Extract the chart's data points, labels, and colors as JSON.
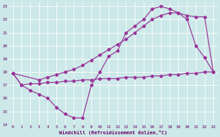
{
  "xlabel": "Windchill (Refroidissement éolien,°C)",
  "background_color": "#cce8e8",
  "line_color": "#993399",
  "xlim": [
    -0.5,
    23.5
  ],
  "ylim": [
    14,
    23.3
  ],
  "yticks": [
    14,
    15,
    16,
    17,
    18,
    19,
    20,
    21,
    22,
    23
  ],
  "xticks": [
    0,
    1,
    2,
    3,
    4,
    5,
    6,
    7,
    8,
    9,
    10,
    11,
    12,
    13,
    14,
    15,
    16,
    17,
    18,
    19,
    20,
    21,
    22,
    23
  ],
  "line1_x": [
    0,
    1,
    2,
    3,
    4,
    5,
    6,
    7,
    8,
    9,
    10,
    11,
    12,
    13,
    14,
    15,
    16,
    17,
    18,
    19,
    20,
    21,
    22,
    23
  ],
  "line1_y": [
    17.9,
    17.0,
    16.6,
    16.3,
    16.0,
    15.3,
    14.8,
    14.5,
    14.5,
    17.0,
    18.0,
    19.2,
    19.6,
    21.0,
    21.5,
    22.0,
    22.8,
    23.0,
    22.8,
    22.5,
    22.0,
    20.0,
    19.1,
    18.0
  ],
  "line2_x": [
    0,
    3,
    4,
    5,
    6,
    7,
    8,
    9,
    10,
    11,
    12,
    13,
    14,
    15,
    16,
    17,
    18,
    19,
    20,
    21,
    22,
    23
  ],
  "line2_y": [
    17.9,
    17.4,
    17.6,
    17.8,
    18.0,
    18.2,
    18.5,
    18.9,
    19.3,
    19.7,
    20.1,
    20.5,
    21.0,
    21.5,
    22.0,
    22.3,
    22.5,
    22.5,
    22.3,
    22.2,
    22.2,
    18.0
  ],
  "line3_x": [
    0,
    1,
    2,
    3,
    4,
    5,
    6,
    7,
    8,
    9,
    10,
    11,
    12,
    13,
    14,
    15,
    16,
    17,
    18,
    19,
    20,
    21,
    22,
    23
  ],
  "line3_y": [
    17.9,
    17.0,
    17.1,
    17.1,
    17.2,
    17.2,
    17.3,
    17.3,
    17.4,
    17.4,
    17.5,
    17.5,
    17.5,
    17.6,
    17.6,
    17.6,
    17.7,
    17.7,
    17.8,
    17.8,
    17.9,
    17.9,
    18.0,
    18.0
  ]
}
